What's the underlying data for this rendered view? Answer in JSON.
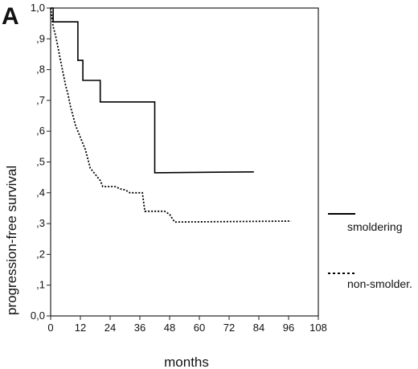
{
  "chart_data": {
    "type": "line",
    "panel_label": "A",
    "xlabel": "months",
    "ylabel": "progression-free survival",
    "x_ticks": [
      0,
      12,
      24,
      36,
      48,
      60,
      72,
      84,
      96,
      108
    ],
    "y_ticks": [
      "0,0",
      ",1",
      ",2",
      ",3",
      ",4",
      ",5",
      ",6",
      ",7",
      ",8",
      ",9",
      "1,0"
    ],
    "xlim": [
      0,
      108
    ],
    "ylim": [
      0,
      1.0
    ],
    "grid": false,
    "legend_position": "right",
    "series": [
      {
        "name": "smoldering",
        "style": "solid",
        "color": "#000000",
        "x": [
          0,
          1,
          1,
          11,
          11,
          13,
          13,
          20,
          20,
          42,
          42,
          82
        ],
        "y": [
          1.0,
          1.0,
          0.955,
          0.955,
          0.83,
          0.83,
          0.765,
          0.765,
          0.695,
          0.695,
          0.465,
          0.468
        ]
      },
      {
        "name": "non-smolder.",
        "style": "dotted",
        "color": "#000000",
        "x": [
          0,
          0.5,
          1,
          2,
          3,
          4,
          5,
          6,
          7,
          8,
          9,
          10,
          11,
          12,
          13,
          14,
          15,
          16,
          17,
          18,
          19,
          20,
          21,
          22,
          23,
          24,
          26,
          29,
          30,
          32,
          37,
          38,
          40,
          46,
          48,
          50,
          97
        ],
        "y": [
          1.0,
          0.97,
          0.94,
          0.91,
          0.87,
          0.83,
          0.79,
          0.75,
          0.72,
          0.68,
          0.65,
          0.62,
          0.6,
          0.58,
          0.56,
          0.54,
          0.51,
          0.48,
          0.47,
          0.46,
          0.45,
          0.44,
          0.42,
          0.42,
          0.42,
          0.42,
          0.42,
          0.41,
          0.41,
          0.4,
          0.4,
          0.34,
          0.34,
          0.34,
          0.33,
          0.305,
          0.308
        ]
      }
    ]
  }
}
